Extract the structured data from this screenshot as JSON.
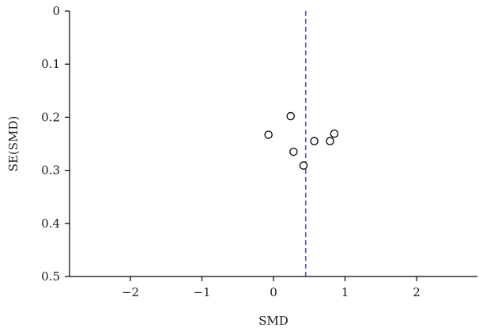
{
  "chart_data": {
    "type": "scatter",
    "title": "",
    "xlabel": "SMD",
    "ylabel": "SE(SMD)",
    "xlim": [
      -2.85,
      2.85
    ],
    "ylim": [
      0,
      0.5
    ],
    "y_inverted": true,
    "x_ticks": [
      -2,
      -1,
      0,
      1,
      2
    ],
    "x_tick_labels": [
      "−2",
      "−1",
      "0",
      "1",
      "2"
    ],
    "y_ticks": [
      0,
      0.1,
      0.2,
      0.3,
      0.4,
      0.5
    ],
    "y_tick_labels": [
      "0",
      "0.1",
      "0.2",
      "0.3",
      "0.4",
      "0.5"
    ],
    "grid": false,
    "reference_line": {
      "x": 0.45,
      "style": "dashed",
      "color": "#4a5f9a"
    },
    "marker": {
      "shape": "open-circle",
      "color": "#000000"
    },
    "points": [
      {
        "x": -0.07,
        "y": 0.233
      },
      {
        "x": 0.24,
        "y": 0.198
      },
      {
        "x": 0.28,
        "y": 0.265
      },
      {
        "x": 0.42,
        "y": 0.291
      },
      {
        "x": 0.57,
        "y": 0.245
      },
      {
        "x": 0.79,
        "y": 0.245
      },
      {
        "x": 0.85,
        "y": 0.231
      }
    ]
  }
}
